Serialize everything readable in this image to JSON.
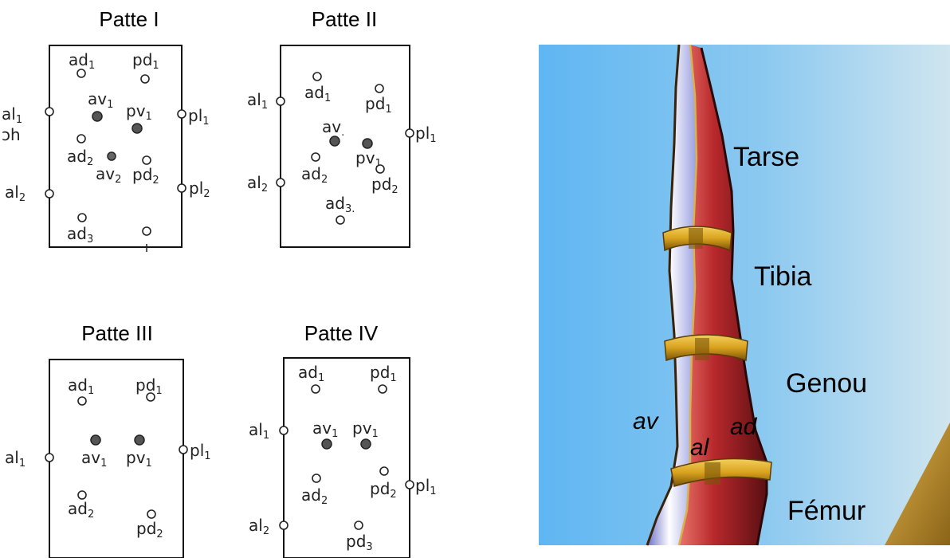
{
  "panels": [
    {
      "title": "Patte I",
      "setae": [
        {
          "base": "ad",
          "sub": "1",
          "filled": false
        },
        {
          "base": "pd",
          "sub": "1",
          "filled": false
        },
        {
          "base": "av",
          "sub": "1",
          "filled": true
        },
        {
          "base": "pv",
          "sub": "1",
          "filled": true
        },
        {
          "base": "al",
          "sub": "1",
          "filled": false
        },
        {
          "base": "pl",
          "sub": "1",
          "filled": false
        },
        {
          "base": "ad",
          "sub": "2",
          "filled": false
        },
        {
          "base": "av",
          "sub": "2",
          "filled": true
        },
        {
          "base": "pd",
          "sub": "2",
          "filled": false
        },
        {
          "base": "al",
          "sub": "2",
          "filled": false
        },
        {
          "base": "pl",
          "sub": "2",
          "filled": false
        },
        {
          "base": "ad",
          "sub": "3",
          "filled": false
        },
        {
          "base": "",
          "sub": "",
          "filled": false
        }
      ],
      "edge_text": "ɔh"
    },
    {
      "title": "Patte II",
      "setae": [
        {
          "base": "ad",
          "sub": "1",
          "filled": false
        },
        {
          "base": "pd",
          "sub": "1",
          "filled": false
        },
        {
          "base": "al",
          "sub": "1",
          "filled": false
        },
        {
          "base": "av",
          "sub": ".",
          "filled": true
        },
        {
          "base": "pv",
          "sub": "1",
          "filled": true
        },
        {
          "base": "pl",
          "sub": "1",
          "filled": false
        },
        {
          "base": "ad",
          "sub": "2",
          "filled": false
        },
        {
          "base": "pd",
          "sub": "2",
          "filled": false
        },
        {
          "base": "al",
          "sub": "2",
          "filled": false
        },
        {
          "base": "ad",
          "sub": "3.",
          "filled": false
        }
      ]
    },
    {
      "title": "Patte III",
      "setae": [
        {
          "base": "ad",
          "sub": "1",
          "filled": false
        },
        {
          "base": "pd",
          "sub": "1",
          "filled": false
        },
        {
          "base": "av",
          "sub": "1",
          "filled": true
        },
        {
          "base": "pv",
          "sub": "1",
          "filled": true
        },
        {
          "base": "al",
          "sub": "1",
          "filled": false
        },
        {
          "base": "pl",
          "sub": "1",
          "filled": false
        },
        {
          "base": "ad",
          "sub": "2",
          "filled": false
        },
        {
          "base": "pd",
          "sub": "2",
          "filled": false
        }
      ]
    },
    {
      "title": "Patte IV",
      "setae": [
        {
          "base": "ad",
          "sub": "1",
          "filled": false
        },
        {
          "base": "pd",
          "sub": "1",
          "filled": false
        },
        {
          "base": "av",
          "sub": "1",
          "filled": true
        },
        {
          "base": "pv",
          "sub": "1",
          "filled": true
        },
        {
          "base": "al",
          "sub": "1",
          "filled": false
        },
        {
          "base": "ad",
          "sub": "2",
          "filled": false
        },
        {
          "base": "pd",
          "sub": "2",
          "filled": false
        },
        {
          "base": "pl",
          "sub": "1",
          "filled": false
        },
        {
          "base": "al",
          "sub": "2",
          "filled": false
        },
        {
          "base": "pd",
          "sub": "3",
          "filled": false
        }
      ]
    }
  ],
  "leg_3d": {
    "segment_labels": [
      "Tarse",
      "Tibia",
      "Genou",
      "Fémur"
    ],
    "face_labels": {
      "av": "av",
      "al": "al",
      "ad": "ad"
    },
    "colors": {
      "sky_left": "#6bbcf2",
      "sky_right": "#c8e2f0",
      "leg_light": "#e8e4f8",
      "leg_red": "#b8282c",
      "ring_gold": "#d9a21e",
      "ground": "#c99a2e"
    }
  }
}
